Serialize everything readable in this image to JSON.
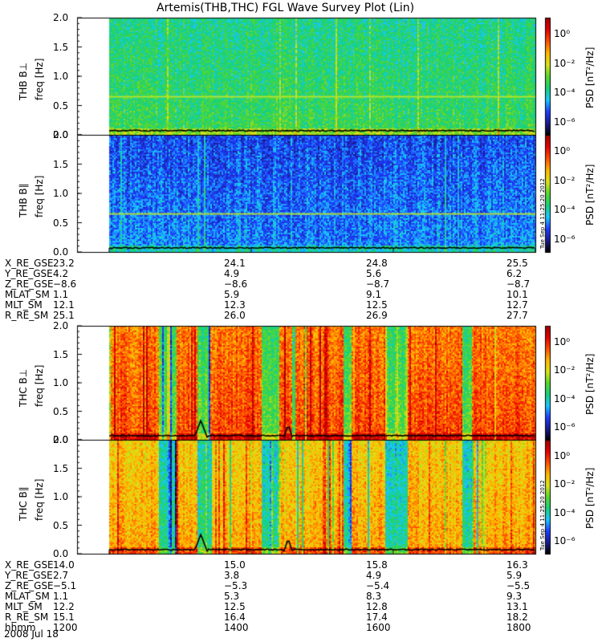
{
  "title": "Artemis(THB,THC) FGL Wave Survey Plot (Lin)",
  "date": "2008 Jul 18",
  "stamp": "Tue Sep 4 11:25:20 2012",
  "colorbar": {
    "label": "PSD [nT²/Hz]",
    "ticks": [
      "10⁰",
      "10⁻²",
      "10⁻⁴",
      "10⁻⁶"
    ],
    "colors": [
      "#000000",
      "#1a1a8c",
      "#1e3cff",
      "#19c8ff",
      "#16d27a",
      "#59d62d",
      "#d8e21a",
      "#ffb800",
      "#ff5000",
      "#e60000",
      "#a00000"
    ]
  },
  "chart_data": [
    {
      "type": "heatmap",
      "panel": "THB B⊥",
      "probe": "THB",
      "component": "B⊥",
      "ylabel": "freq [Hz]",
      "yticks": [
        "0.0",
        "0.5",
        "1.0",
        "1.5",
        "2.0"
      ],
      "ylim": [
        0,
        2.0
      ],
      "palette": "green-dominant",
      "grid": false
    },
    {
      "type": "heatmap",
      "panel": "THB B∥",
      "probe": "THB",
      "component": "B∥",
      "ylabel": "freq [Hz]",
      "yticks": [
        "0.0",
        "0.5",
        "1.0",
        "1.5",
        "2.0"
      ],
      "ylim": [
        0,
        2.0
      ],
      "palette": "blue-dominant",
      "grid": false
    },
    {
      "type": "heatmap",
      "panel": "THC B⊥",
      "probe": "THC",
      "component": "B⊥",
      "ylabel": "freq [Hz]",
      "yticks": [
        "0.0",
        "0.5",
        "1.0",
        "1.5",
        "2.0"
      ],
      "ylim": [
        0,
        2.0
      ],
      "palette": "red-dominant",
      "grid": false
    },
    {
      "type": "heatmap",
      "panel": "THC B∥",
      "probe": "THC",
      "component": "B∥",
      "ylabel": "freq [Hz]",
      "yticks": [
        "0.0",
        "0.5",
        "1.0",
        "1.5",
        "2.0"
      ],
      "ylim": [
        0,
        2.0
      ],
      "palette": "orange-dominant",
      "grid": false
    }
  ],
  "ephemeris": {
    "thb": {
      "rows": [
        {
          "label": "X_RE_GSE",
          "values": [
            "23.2",
            "24.1",
            "24.8",
            "25.5"
          ]
        },
        {
          "label": "Y_RE_GSE",
          "values": [
            "4.2",
            "4.9",
            "5.6",
            "6.2"
          ]
        },
        {
          "label": "Z_RE_GSE",
          "values": [
            "−8.6",
            "−8.6",
            "−8.7",
            "−8.7"
          ]
        },
        {
          "label": "MLAT_SM",
          "values": [
            "1.1",
            "5.9",
            "9.1",
            "10.1"
          ]
        },
        {
          "label": "MLT_SM",
          "values": [
            "12.1",
            "12.3",
            "12.5",
            "12.7"
          ]
        },
        {
          "label": "R_RE_SM",
          "values": [
            "25.1",
            "26.0",
            "26.9",
            "27.7"
          ]
        }
      ]
    },
    "thc": {
      "rows": [
        {
          "label": "X_RE_GSE",
          "values": [
            "14.0",
            "15.0",
            "15.8",
            "16.3"
          ]
        },
        {
          "label": "Y_RE_GSE",
          "values": [
            "2.7",
            "3.8",
            "4.9",
            "5.9"
          ]
        },
        {
          "label": "Z_RE_GSE",
          "values": [
            "−5.1",
            "−5.3",
            "−5.4",
            "−5.5"
          ]
        },
        {
          "label": "MLAT_SM",
          "values": [
            "1.1",
            "5.3",
            "8.3",
            "9.3"
          ]
        },
        {
          "label": "MLT_SM",
          "values": [
            "12.2",
            "12.5",
            "12.8",
            "13.1"
          ]
        },
        {
          "label": "R_RE_SM",
          "values": [
            "15.1",
            "16.4",
            "17.4",
            "18.2"
          ]
        },
        {
          "label": "hhmm",
          "values": [
            "1200",
            "1400",
            "1600",
            "1800"
          ]
        }
      ]
    }
  }
}
